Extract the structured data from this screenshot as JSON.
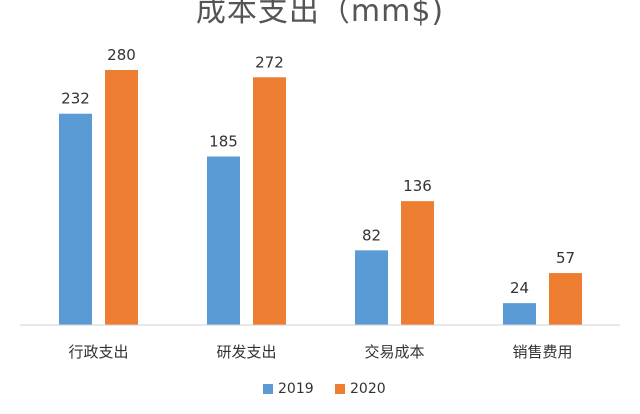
{
  "chart_data": {
    "type": "bar",
    "title": "成本支出（mm$)",
    "categories": [
      "行政支出",
      "研发支出",
      "交易成本",
      "销售费用"
    ],
    "series": [
      {
        "name": "2019",
        "values": [
          232,
          185,
          82,
          24
        ],
        "color": "#5B9BD5"
      },
      {
        "name": "2020",
        "values": [
          280,
          272,
          136,
          57
        ],
        "color": "#ED7D31"
      }
    ],
    "ylim": [
      0,
      300
    ],
    "grid": false,
    "legend_position": "bottom",
    "xlabel": "",
    "ylabel": ""
  }
}
